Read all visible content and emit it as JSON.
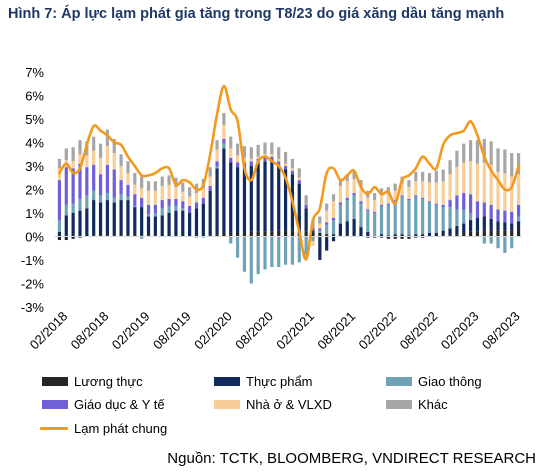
{
  "title": "Hình 7: Áp lực lạm phát gia tăng trong T8/23 do giá xăng dầu tăng mạnh",
  "source": "Nguồn: TCTK, BLOOMBERG, VNDIRECT RESEARCH",
  "colors": {
    "luong_thuc": "#262626",
    "thuc_pham": "#102a5c",
    "giao_thong": "#6fa2b7",
    "giao_duc_y_te": "#6f5fd9",
    "nha_o_vlxd": "#f9cd97",
    "khac": "#a6a6a6",
    "lam_phat_chung": "#f39a1e"
  },
  "chart_data": {
    "type": "bar",
    "stacked": true,
    "ylim": [
      -3,
      7
    ],
    "yticks": [
      "7%",
      "6%",
      "5%",
      "4%",
      "3%",
      "2%",
      "1%",
      "0%",
      "-1%",
      "-2%",
      "-3%"
    ],
    "xtick_labels": [
      "02/2018",
      "08/2018",
      "02/2019",
      "08/2019",
      "02/2020",
      "08/2020",
      "02/2021",
      "08/2021",
      "02/2022",
      "08/2022",
      "02/2023",
      "08/2023"
    ],
    "x": [
      "01/2018",
      "02/2018",
      "03/2018",
      "04/2018",
      "05/2018",
      "06/2018",
      "07/2018",
      "08/2018",
      "09/2018",
      "10/2018",
      "11/2018",
      "12/2018",
      "01/2019",
      "02/2019",
      "03/2019",
      "04/2019",
      "05/2019",
      "06/2019",
      "07/2019",
      "08/2019",
      "09/2019",
      "10/2019",
      "11/2019",
      "12/2019",
      "01/2020",
      "02/2020",
      "03/2020",
      "04/2020",
      "05/2020",
      "06/2020",
      "07/2020",
      "08/2020",
      "09/2020",
      "10/2020",
      "11/2020",
      "12/2020",
      "01/2021",
      "02/2021",
      "03/2021",
      "04/2021",
      "05/2021",
      "06/2021",
      "07/2021",
      "08/2021",
      "09/2021",
      "10/2021",
      "11/2021",
      "12/2021",
      "01/2022",
      "02/2022",
      "03/2022",
      "04/2022",
      "05/2022",
      "06/2022",
      "07/2022",
      "08/2022",
      "09/2022",
      "10/2022",
      "11/2022",
      "12/2022",
      "01/2023",
      "02/2023",
      "03/2023",
      "04/2023",
      "05/2023",
      "06/2023",
      "07/2023",
      "08/2023"
    ],
    "series": [
      {
        "name": "Lương thực",
        "color_key": "luong_thuc",
        "values": [
          -0.15,
          -0.15,
          -0.1,
          -0.05,
          0.0,
          0.05,
          0.05,
          0.05,
          0.05,
          0.05,
          0.05,
          0.05,
          0.05,
          0.05,
          0.05,
          0.0,
          0.0,
          0.0,
          0.0,
          0.0,
          0.0,
          0.0,
          0.05,
          0.1,
          0.15,
          0.15,
          0.15,
          0.15,
          0.2,
          0.2,
          0.2,
          0.2,
          0.25,
          0.25,
          0.25,
          0.25,
          0.2,
          0.15,
          0.15,
          0.1,
          0.1,
          0.05,
          0.05,
          0.05,
          0.0,
          -0.05,
          -0.05,
          -0.05,
          -0.1,
          -0.1,
          -0.1,
          -0.1,
          -0.05,
          -0.05,
          0.0,
          0.0,
          0.05,
          0.05,
          0.1,
          0.15,
          0.2,
          0.2,
          0.25,
          0.25,
          0.25,
          0.25,
          0.25,
          0.3
        ]
      },
      {
        "name": "Thực phẩm",
        "color_key": "thuc_pham",
        "values": [
          0.2,
          0.9,
          1.0,
          1.1,
          1.2,
          1.5,
          1.4,
          1.5,
          1.4,
          1.5,
          1.5,
          1.2,
          1.2,
          0.8,
          0.8,
          0.9,
          1.0,
          1.1,
          1.1,
          1.0,
          1.2,
          1.4,
          1.9,
          2.8,
          3.6,
          3.0,
          2.8,
          2.8,
          2.8,
          2.9,
          3.0,
          3.0,
          2.8,
          2.6,
          2.4,
          2.0,
          1.0,
          0.1,
          -1.0,
          -0.6,
          -0.2,
          0.5,
          0.6,
          0.7,
          0.4,
          0.2,
          0.0,
          0.1,
          0.05,
          0.1,
          0.1,
          0.05,
          0.1,
          0.1,
          0.15,
          0.15,
          0.2,
          0.3,
          0.35,
          0.4,
          0.5,
          0.6,
          0.6,
          0.5,
          0.4,
          0.35,
          0.3,
          0.35
        ]
      },
      {
        "name": "Giao thông",
        "color_key": "giao_thong",
        "values": [
          0.5,
          0.45,
          0.4,
          0.5,
          0.55,
          0.4,
          0.3,
          0.3,
          0.2,
          0.25,
          0.15,
          0.05,
          -0.1,
          0.1,
          0.15,
          0.3,
          0.3,
          0.2,
          0.1,
          0.0,
          -0.05,
          -0.05,
          0.0,
          0.1,
          0.2,
          -0.3,
          -0.9,
          -1.5,
          -2.0,
          -1.6,
          -1.4,
          -1.3,
          -1.3,
          -1.2,
          -1.2,
          -1.1,
          -0.8,
          -0.2,
          0.1,
          0.4,
          0.6,
          0.8,
          0.9,
          1.0,
          1.0,
          0.9,
          1.0,
          1.2,
          1.3,
          1.4,
          1.6,
          1.5,
          1.6,
          1.5,
          1.3,
          1.2,
          1.0,
          0.9,
          0.7,
          0.6,
          0.3,
          0.0,
          -0.3,
          -0.3,
          -0.5,
          -0.7,
          -0.5,
          0.2
        ]
      },
      {
        "name": "Giáo dục & Y tế",
        "color_key": "giao_duc_y_te",
        "values": [
          1.7,
          1.6,
          1.5,
          1.5,
          1.2,
          1.1,
          0.9,
          1.2,
          1.2,
          0.6,
          0.5,
          0.5,
          0.4,
          0.4,
          0.35,
          0.35,
          0.3,
          0.3,
          0.3,
          0.3,
          0.25,
          0.25,
          0.2,
          0.2,
          0.2,
          0.2,
          0.2,
          0.2,
          0.2,
          0.2,
          0.2,
          0.2,
          0.15,
          0.15,
          0.15,
          0.15,
          0.15,
          0.1,
          0.1,
          0.1,
          0.1,
          0.1,
          0.1,
          0.1,
          0.1,
          0.05,
          0.05,
          0.05,
          0.05,
          0.05,
          0.05,
          0.05,
          0.05,
          0.05,
          0.05,
          0.05,
          0.1,
          0.3,
          0.6,
          0.7,
          0.8,
          0.7,
          0.6,
          0.6,
          0.5,
          0.5,
          0.5,
          0.5
        ]
      },
      {
        "name": "Nhà ở & VLXD",
        "color_key": "nha_o_vlxd",
        "values": [
          0.5,
          0.3,
          0.3,
          0.4,
          0.5,
          0.6,
          0.7,
          0.8,
          0.7,
          0.6,
          0.5,
          0.4,
          0.4,
          0.6,
          0.6,
          0.6,
          0.6,
          0.5,
          0.4,
          0.4,
          0.4,
          0.4,
          0.4,
          0.5,
          0.6,
          0.4,
          0.3,
          0.2,
          0.1,
          0.1,
          0.1,
          0.1,
          0.1,
          0.1,
          0.1,
          0.1,
          -0.2,
          -0.2,
          0.2,
          0.5,
          0.7,
          0.7,
          0.7,
          0.6,
          0.6,
          0.5,
          0.5,
          0.4,
          0.4,
          0.4,
          0.5,
          0.5,
          0.6,
          0.7,
          0.8,
          0.9,
          1.0,
          1.1,
          1.2,
          1.3,
          1.4,
          1.6,
          1.7,
          1.7,
          1.6,
          1.6,
          1.5,
          1.3
        ]
      },
      {
        "name": "Khác",
        "color_key": "khac",
        "values": [
          0.4,
          0.5,
          0.6,
          0.6,
          0.6,
          0.6,
          0.6,
          0.7,
          0.6,
          0.5,
          0.5,
          0.5,
          0.5,
          0.4,
          0.4,
          0.4,
          0.4,
          0.4,
          0.4,
          0.4,
          0.4,
          0.4,
          0.4,
          0.4,
          0.5,
          0.5,
          0.5,
          0.5,
          0.5,
          0.5,
          0.5,
          0.5,
          0.5,
          0.5,
          0.4,
          0.4,
          0.4,
          0.4,
          0.3,
          0.3,
          0.3,
          0.3,
          0.3,
          0.3,
          0.3,
          0.3,
          0.3,
          0.3,
          0.3,
          0.3,
          0.3,
          0.3,
          0.4,
          0.4,
          0.4,
          0.5,
          0.5,
          0.6,
          0.7,
          0.8,
          0.9,
          1.0,
          1.0,
          1.0,
          1.0,
          1.0,
          1.0,
          0.9
        ]
      },
      {
        "name": "Lạm phát chung",
        "color_key": "lam_phat_chung",
        "kind": "line",
        "values": [
          2.7,
          3.1,
          2.7,
          2.9,
          3.9,
          4.7,
          4.5,
          4.3,
          4.0,
          3.9,
          3.4,
          3.0,
          2.6,
          2.6,
          2.7,
          2.9,
          2.9,
          2.2,
          2.4,
          2.3,
          2.0,
          2.2,
          3.5,
          5.2,
          6.4,
          5.4,
          4.9,
          2.9,
          2.4,
          3.2,
          3.4,
          3.2,
          3.0,
          2.5,
          1.5,
          0.2,
          -0.97,
          0.7,
          1.2,
          2.7,
          2.9,
          2.4,
          2.6,
          2.8,
          2.1,
          1.8,
          2.1,
          1.8,
          1.9,
          1.4,
          2.4,
          2.6,
          2.9,
          3.4,
          3.1,
          2.9,
          3.9,
          4.3,
          4.4,
          4.5,
          4.9,
          4.3,
          3.4,
          2.8,
          2.4,
          2.0,
          2.1,
          3.0
        ]
      }
    ]
  },
  "legend": {
    "items": [
      {
        "label": "Lương thực",
        "color_key": "luong_thuc",
        "kind": "box"
      },
      {
        "label": "Thực phẩm",
        "color_key": "thuc_pham",
        "kind": "box"
      },
      {
        "label": "Giao thông",
        "color_key": "giao_thong",
        "kind": "box"
      },
      {
        "label": "Giáo dục & Y tế",
        "color_key": "giao_duc_y_te",
        "kind": "box"
      },
      {
        "label": "Nhà ở & VLXD",
        "color_key": "nha_o_vlxd",
        "kind": "box"
      },
      {
        "label": "Khác",
        "color_key": "khac",
        "kind": "box"
      },
      {
        "label": "Lạm phát chung",
        "color_key": "lam_phat_chung",
        "kind": "line"
      }
    ]
  }
}
